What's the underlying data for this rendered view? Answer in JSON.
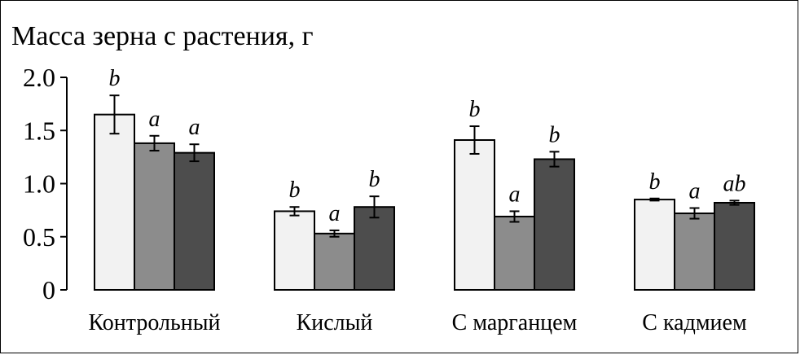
{
  "chart_data": {
    "type": "bar",
    "title": "",
    "xlabel": "",
    "ylabel": "Масса зерна с растения, г",
    "ylim": [
      0,
      2.0
    ],
    "yticks": [
      "0",
      "0.5",
      "1.0",
      "1.5",
      "2.0"
    ],
    "ytick_values": [
      0,
      0.5,
      1.0,
      1.5,
      2.0
    ],
    "categories": [
      "Контрольный",
      "Кислый",
      "С марганцем",
      "С кадмием"
    ],
    "legend": "none",
    "grid": false,
    "series": [
      {
        "color": "#f2f2f2",
        "values": [
          1.65,
          0.74,
          1.41,
          0.85
        ],
        "errors": [
          0.18,
          0.04,
          0.13,
          0.01
        ],
        "significance": [
          "b",
          "b",
          "b",
          "b"
        ]
      },
      {
        "color": "#8c8c8c",
        "values": [
          1.38,
          0.53,
          0.69,
          0.72
        ],
        "errors": [
          0.07,
          0.03,
          0.05,
          0.05
        ],
        "significance": [
          "a",
          "a",
          "a",
          "a"
        ]
      },
      {
        "color": "#4d4d4d",
        "values": [
          1.29,
          0.78,
          1.23,
          0.82
        ],
        "errors": [
          0.08,
          0.1,
          0.07,
          0.02
        ],
        "significance": [
          "a",
          "b",
          "b",
          "ab"
        ]
      }
    ]
  }
}
